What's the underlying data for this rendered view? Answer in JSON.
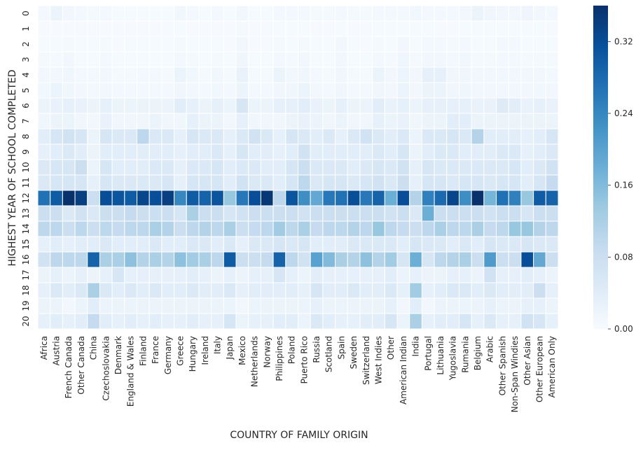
{
  "chart_data": {
    "type": "heatmap",
    "title": "",
    "xlabel": "COUNTRY OF FAMILY ORIGIN",
    "ylabel": "HIGHEST YEAR OF SCHOOL COMPLETED",
    "x_categories": [
      "Africa",
      "Austria",
      "French Canada",
      "Other Canada",
      "China",
      "Czechoslovakia",
      "Denmark",
      "England & Wales",
      "Finland",
      "France",
      "Germany",
      "Greece",
      "Hungary",
      "Ireland",
      "Italy",
      "Japan",
      "Mexico",
      "Netherlands",
      "Norway",
      "Philippines",
      "Poland",
      "Puerto Rico",
      "Russia",
      "Scotland",
      "Spain",
      "Sweden",
      "Switzerland",
      "West Indies",
      "Other",
      "American Indian",
      "India",
      "Portugal",
      "Lithuania",
      "Yugoslavia",
      "Rumania",
      "Belgium",
      "Arabic",
      "Other Spanish",
      "Non-Span Windies",
      "Other Asian",
      "Other European",
      "American Only"
    ],
    "y_categories": [
      "0",
      "1",
      "2",
      "3",
      "4",
      "5",
      "6",
      "7",
      "8",
      "9",
      "10",
      "11",
      "12",
      "13",
      "14",
      "15",
      "16",
      "17",
      "18",
      "19",
      "20"
    ],
    "vmin": 0,
    "vmax": 0.36,
    "colormap": [
      "#f7fbff",
      "#deebf7",
      "#c6dbef",
      "#9ecae1",
      "#6baed6",
      "#4292c6",
      "#2171b5",
      "#08519c",
      "#08306b"
    ],
    "colorbar": {
      "ticks": [
        0.0,
        0.08,
        0.16,
        0.24,
        0.32
      ],
      "tick_labels": [
        "0.00",
        "0.08",
        "0.16",
        "0.24",
        "0.32"
      ]
    },
    "rows_by_year": {
      "0": [
        0.008,
        0.02,
        0.01,
        0.008,
        0.005,
        0.008,
        0.004,
        0.004,
        0.004,
        0.004,
        0.004,
        0.012,
        0.008,
        0.004,
        0.008,
        0.004,
        0.012,
        0.004,
        0.004,
        0.008,
        0.008,
        0.008,
        0.006,
        0.006,
        0.008,
        0.006,
        0.006,
        0.008,
        0.008,
        0.008,
        0.012,
        0.008,
        0.008,
        0.008,
        0.01,
        0.02,
        0.015,
        0.012,
        0.01,
        0.016,
        0.01,
        0.008
      ],
      "1": [
        0.002,
        0.002,
        0.002,
        0.002,
        0.002,
        0.002,
        0.002,
        0.002,
        0.002,
        0.002,
        0.002,
        0.004,
        0.002,
        0.002,
        0.002,
        0.002,
        0.006,
        0.002,
        0.002,
        0.004,
        0.002,
        0.004,
        0.002,
        0.002,
        0.004,
        0.002,
        0.002,
        0.004,
        0.004,
        0.004,
        0.004,
        0.004,
        0.002,
        0.002,
        0.004,
        0.004,
        0.004,
        0.004,
        0.004,
        0.004,
        0.004,
        0.002
      ],
      "2": [
        0.004,
        0.004,
        0.006,
        0.004,
        0.004,
        0.006,
        0.002,
        0.004,
        0.004,
        0.004,
        0.004,
        0.006,
        0.004,
        0.004,
        0.004,
        0.002,
        0.012,
        0.002,
        0.002,
        0.006,
        0.004,
        0.006,
        0.004,
        0.004,
        0.012,
        0.004,
        0.002,
        0.006,
        0.004,
        0.01,
        0.004,
        0.008,
        0.008,
        0.006,
        0.008,
        0.004,
        0.004,
        0.008,
        0.008,
        0.004,
        0.004,
        0.004
      ],
      "3": [
        0.006,
        0.006,
        0.01,
        0.004,
        0.004,
        0.008,
        0.004,
        0.004,
        0.004,
        0.004,
        0.004,
        0.008,
        0.006,
        0.004,
        0.006,
        0.004,
        0.015,
        0.004,
        0.004,
        0.008,
        0.006,
        0.01,
        0.004,
        0.004,
        0.012,
        0.004,
        0.004,
        0.008,
        0.006,
        0.014,
        0.006,
        0.01,
        0.01,
        0.008,
        0.012,
        0.006,
        0.006,
        0.008,
        0.008,
        0.006,
        0.006,
        0.006
      ],
      "4": [
        0.01,
        0.01,
        0.015,
        0.008,
        0.008,
        0.012,
        0.006,
        0.006,
        0.008,
        0.008,
        0.006,
        0.02,
        0.012,
        0.006,
        0.012,
        0.006,
        0.025,
        0.006,
        0.006,
        0.02,
        0.012,
        0.015,
        0.008,
        0.006,
        0.015,
        0.006,
        0.006,
        0.02,
        0.01,
        0.018,
        0.01,
        0.03,
        0.03,
        0.015,
        0.015,
        0.01,
        0.01,
        0.012,
        0.01,
        0.01,
        0.01,
        0.008
      ],
      "5": [
        0.012,
        0.02,
        0.015,
        0.01,
        0.008,
        0.012,
        0.008,
        0.008,
        0.008,
        0.008,
        0.008,
        0.015,
        0.012,
        0.008,
        0.012,
        0.008,
        0.02,
        0.008,
        0.008,
        0.015,
        0.015,
        0.02,
        0.01,
        0.008,
        0.015,
        0.008,
        0.008,
        0.015,
        0.01,
        0.02,
        0.01,
        0.02,
        0.02,
        0.015,
        0.015,
        0.012,
        0.012,
        0.012,
        0.012,
        0.01,
        0.012,
        0.01
      ],
      "6": [
        0.02,
        0.025,
        0.03,
        0.025,
        0.02,
        0.03,
        0.02,
        0.02,
        0.02,
        0.02,
        0.02,
        0.04,
        0.03,
        0.02,
        0.03,
        0.02,
        0.06,
        0.02,
        0.02,
        0.03,
        0.03,
        0.04,
        0.025,
        0.02,
        0.03,
        0.02,
        0.02,
        0.04,
        0.025,
        0.03,
        0.02,
        0.03,
        0.03,
        0.03,
        0.03,
        0.025,
        0.025,
        0.045,
        0.04,
        0.025,
        0.03,
        0.025
      ],
      "7": [
        0.015,
        0.02,
        0.02,
        0.015,
        0.012,
        0.025,
        0.015,
        0.015,
        0.015,
        0.02,
        0.015,
        0.015,
        0.03,
        0.02,
        0.02,
        0.01,
        0.03,
        0.015,
        0.015,
        0.015,
        0.02,
        0.025,
        0.02,
        0.015,
        0.02,
        0.015,
        0.015,
        0.03,
        0.02,
        0.025,
        0.015,
        0.02,
        0.02,
        0.04,
        0.04,
        0.02,
        0.02,
        0.02,
        0.02,
        0.02,
        0.02,
        0.02
      ],
      "8": [
        0.04,
        0.06,
        0.07,
        0.06,
        0.02,
        0.06,
        0.05,
        0.05,
        0.1,
        0.05,
        0.05,
        0.03,
        0.06,
        0.05,
        0.05,
        0.03,
        0.05,
        0.07,
        0.05,
        0.03,
        0.06,
        0.05,
        0.04,
        0.05,
        0.03,
        0.05,
        0.07,
        0.05,
        0.04,
        0.05,
        0.02,
        0.05,
        0.05,
        0.06,
        0.05,
        0.11,
        0.04,
        0.04,
        0.04,
        0.03,
        0.04,
        0.06
      ],
      "9": [
        0.03,
        0.04,
        0.05,
        0.04,
        0.02,
        0.04,
        0.04,
        0.04,
        0.04,
        0.04,
        0.04,
        0.03,
        0.04,
        0.04,
        0.05,
        0.03,
        0.06,
        0.04,
        0.04,
        0.03,
        0.04,
        0.07,
        0.04,
        0.04,
        0.04,
        0.04,
        0.04,
        0.05,
        0.04,
        0.06,
        0.02,
        0.04,
        0.05,
        0.05,
        0.04,
        0.04,
        0.04,
        0.05,
        0.05,
        0.03,
        0.04,
        0.05
      ],
      "10": [
        0.05,
        0.06,
        0.06,
        0.08,
        0.02,
        0.06,
        0.04,
        0.04,
        0.04,
        0.05,
        0.05,
        0.03,
        0.05,
        0.05,
        0.06,
        0.04,
        0.05,
        0.05,
        0.04,
        0.04,
        0.06,
        0.08,
        0.05,
        0.05,
        0.05,
        0.04,
        0.05,
        0.06,
        0.05,
        0.07,
        0.03,
        0.06,
        0.05,
        0.05,
        0.05,
        0.05,
        0.05,
        0.05,
        0.06,
        0.04,
        0.05,
        0.07
      ],
      "11": [
        0.05,
        0.06,
        0.06,
        0.06,
        0.03,
        0.06,
        0.05,
        0.05,
        0.05,
        0.05,
        0.06,
        0.03,
        0.06,
        0.06,
        0.06,
        0.04,
        0.07,
        0.05,
        0.05,
        0.04,
        0.06,
        0.1,
        0.05,
        0.06,
        0.06,
        0.05,
        0.06,
        0.07,
        0.05,
        0.08,
        0.03,
        0.06,
        0.06,
        0.05,
        0.06,
        0.06,
        0.05,
        0.06,
        0.06,
        0.04,
        0.06,
        0.09
      ],
      "12": [
        0.27,
        0.3,
        0.36,
        0.34,
        0.08,
        0.32,
        0.31,
        0.3,
        0.33,
        0.32,
        0.34,
        0.24,
        0.3,
        0.29,
        0.31,
        0.14,
        0.26,
        0.32,
        0.35,
        0.1,
        0.31,
        0.23,
        0.19,
        0.26,
        0.27,
        0.32,
        0.26,
        0.29,
        0.18,
        0.32,
        0.11,
        0.25,
        0.28,
        0.33,
        0.23,
        0.36,
        0.17,
        0.27,
        0.25,
        0.14,
        0.3,
        0.29
      ],
      "13": [
        0.08,
        0.08,
        0.05,
        0.07,
        0.05,
        0.08,
        0.08,
        0.09,
        0.08,
        0.08,
        0.08,
        0.06,
        0.12,
        0.08,
        0.08,
        0.06,
        0.07,
        0.08,
        0.08,
        0.08,
        0.08,
        0.07,
        0.08,
        0.08,
        0.08,
        0.08,
        0.08,
        0.08,
        0.07,
        0.08,
        0.05,
        0.18,
        0.08,
        0.08,
        0.08,
        0.08,
        0.07,
        0.08,
        0.08,
        0.06,
        0.08,
        0.08
      ],
      "14": [
        0.1,
        0.1,
        0.08,
        0.1,
        0.08,
        0.1,
        0.09,
        0.1,
        0.1,
        0.12,
        0.11,
        0.08,
        0.1,
        0.11,
        0.1,
        0.12,
        0.08,
        0.09,
        0.1,
        0.13,
        0.1,
        0.12,
        0.09,
        0.1,
        0.1,
        0.11,
        0.1,
        0.14,
        0.1,
        0.09,
        0.08,
        0.1,
        0.12,
        0.1,
        0.1,
        0.12,
        0.09,
        0.1,
        0.14,
        0.14,
        0.11,
        0.1
      ],
      "15": [
        0.03,
        0.04,
        0.03,
        0.04,
        0.04,
        0.05,
        0.04,
        0.04,
        0.04,
        0.05,
        0.04,
        0.04,
        0.05,
        0.05,
        0.04,
        0.05,
        0.03,
        0.05,
        0.05,
        0.06,
        0.05,
        0.06,
        0.04,
        0.04,
        0.04,
        0.05,
        0.05,
        0.05,
        0.05,
        0.04,
        0.06,
        0.05,
        0.05,
        0.04,
        0.05,
        0.04,
        0.06,
        0.05,
        0.05,
        0.06,
        0.05,
        0.05
      ],
      "16": [
        0.07,
        0.1,
        0.1,
        0.1,
        0.29,
        0.12,
        0.12,
        0.15,
        0.11,
        0.12,
        0.11,
        0.15,
        0.13,
        0.12,
        0.1,
        0.3,
        0.08,
        0.08,
        0.09,
        0.29,
        0.1,
        0.07,
        0.2,
        0.16,
        0.12,
        0.11,
        0.15,
        0.11,
        0.13,
        0.06,
        0.18,
        0.06,
        0.1,
        0.11,
        0.12,
        0.08,
        0.21,
        0.08,
        0.08,
        0.32,
        0.19,
        0.08
      ],
      "17": [
        0.02,
        0.03,
        0.02,
        0.03,
        0.02,
        0.03,
        0.06,
        0.03,
        0.03,
        0.03,
        0.03,
        0.03,
        0.04,
        0.03,
        0.02,
        0.03,
        0.02,
        0.03,
        0.03,
        0.06,
        0.03,
        0.02,
        0.04,
        0.03,
        0.03,
        0.03,
        0.03,
        0.03,
        0.04,
        0.02,
        0.03,
        0.02,
        0.02,
        0.03,
        0.03,
        0.02,
        0.07,
        0.03,
        0.03,
        0.04,
        0.03,
        0.02
      ],
      "18": [
        0.03,
        0.05,
        0.04,
        0.05,
        0.12,
        0.05,
        0.04,
        0.05,
        0.04,
        0.05,
        0.04,
        0.04,
        0.05,
        0.04,
        0.04,
        0.05,
        0.03,
        0.04,
        0.04,
        0.04,
        0.04,
        0.03,
        0.06,
        0.04,
        0.04,
        0.05,
        0.04,
        0.04,
        0.05,
        0.03,
        0.13,
        0.03,
        0.04,
        0.05,
        0.05,
        0.04,
        0.05,
        0.04,
        0.04,
        0.04,
        0.08,
        0.03
      ],
      "19": [
        0.02,
        0.02,
        0.01,
        0.02,
        0.04,
        0.02,
        0.02,
        0.02,
        0.02,
        0.02,
        0.02,
        0.02,
        0.02,
        0.02,
        0.02,
        0.02,
        0.01,
        0.02,
        0.02,
        0.02,
        0.02,
        0.02,
        0.03,
        0.02,
        0.02,
        0.02,
        0.02,
        0.02,
        0.03,
        0.01,
        0.04,
        0.01,
        0.02,
        0.02,
        0.02,
        0.02,
        0.03,
        0.02,
        0.02,
        0.03,
        0.03,
        0.02
      ],
      "20": [
        0.03,
        0.04,
        0.03,
        0.04,
        0.09,
        0.04,
        0.03,
        0.04,
        0.03,
        0.04,
        0.03,
        0.03,
        0.04,
        0.03,
        0.03,
        0.06,
        0.02,
        0.03,
        0.03,
        0.04,
        0.04,
        0.02,
        0.05,
        0.04,
        0.03,
        0.03,
        0.04,
        0.04,
        0.06,
        0.02,
        0.12,
        0.03,
        0.04,
        0.04,
        0.06,
        0.03,
        0.05,
        0.03,
        0.03,
        0.07,
        0.06,
        0.03
      ]
    }
  }
}
